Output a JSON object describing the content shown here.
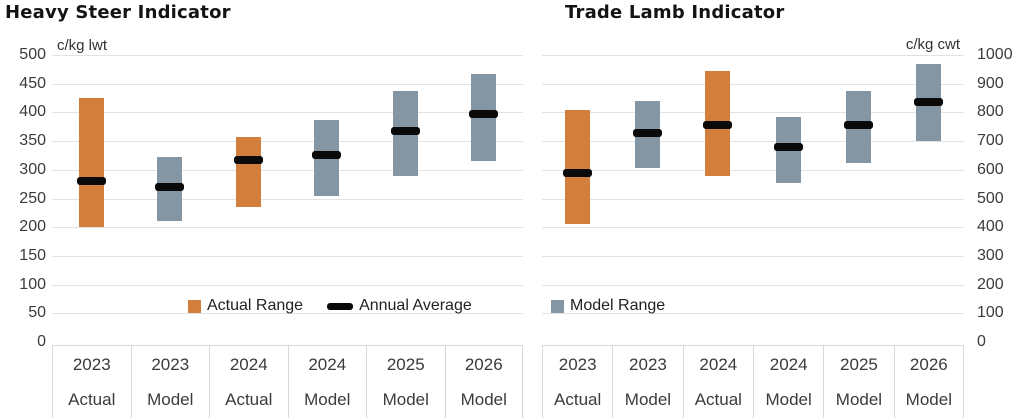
{
  "style": {
    "actual_color": "#D27E3C",
    "model_color": "#8496A4",
    "average_color": "#0A0A0A",
    "gridline_color": "#E2E2E2",
    "box_border_color": "#D9D9D9",
    "text_color": "#3B3B3B"
  },
  "chart_data": [
    {
      "type": "bar",
      "subtype": "floating-range-bar",
      "title": "Heavy Steer Indicator",
      "unit_label": "c/kg lwt",
      "axis_side": "left",
      "ylim": [
        0,
        500
      ],
      "ystep": 50,
      "grid": true,
      "categories": [
        {
          "year": "2023",
          "kind": "Actual"
        },
        {
          "year": "2023",
          "kind": "Model"
        },
        {
          "year": "2024",
          "kind": "Actual"
        },
        {
          "year": "2024",
          "kind": "Model"
        },
        {
          "year": "2025",
          "kind": "Model"
        },
        {
          "year": "2026",
          "kind": "Model"
        }
      ],
      "bars": [
        {
          "series": "Actual Range",
          "low": 200,
          "high": 425,
          "average": 280
        },
        {
          "series": "Model Range",
          "low": 210,
          "high": 322,
          "average": 270
        },
        {
          "series": "Actual Range",
          "low": 236,
          "high": 358,
          "average": 317
        },
        {
          "series": "Model Range",
          "low": 255,
          "high": 386,
          "average": 325
        },
        {
          "series": "Model Range",
          "low": 290,
          "high": 438,
          "average": 368
        },
        {
          "series": "Model Range",
          "low": 316,
          "high": 467,
          "average": 398
        }
      ],
      "legend": [
        {
          "label": "Actual Range",
          "swatch": "square",
          "color": "#D27E3C"
        },
        {
          "label": "Annual Average",
          "swatch": "dash",
          "color": "#0A0A0A"
        }
      ]
    },
    {
      "type": "bar",
      "subtype": "floating-range-bar",
      "title": "Trade Lamb Indicator",
      "unit_label": "c/kg cwt",
      "axis_side": "right",
      "ylim": [
        0,
        1000
      ],
      "ystep": 100,
      "grid": true,
      "categories": [
        {
          "year": "2023",
          "kind": "Actual"
        },
        {
          "year": "2023",
          "kind": "Model"
        },
        {
          "year": "2024",
          "kind": "Actual"
        },
        {
          "year": "2024",
          "kind": "Model"
        },
        {
          "year": "2025",
          "kind": "Model"
        },
        {
          "year": "2026",
          "kind": "Model"
        }
      ],
      "bars": [
        {
          "series": "Actual Range",
          "low": 410,
          "high": 810,
          "average": 590
        },
        {
          "series": "Model Range",
          "low": 605,
          "high": 840,
          "average": 730
        },
        {
          "series": "Actual Range",
          "low": 580,
          "high": 945,
          "average": 755
        },
        {
          "series": "Model Range",
          "low": 555,
          "high": 785,
          "average": 680
        },
        {
          "series": "Model Range",
          "low": 625,
          "high": 875,
          "average": 755
        },
        {
          "series": "Model Range",
          "low": 700,
          "high": 970,
          "average": 835
        }
      ],
      "legend": [
        {
          "label": "Model Range",
          "swatch": "square",
          "color": "#8496A4"
        }
      ]
    }
  ]
}
